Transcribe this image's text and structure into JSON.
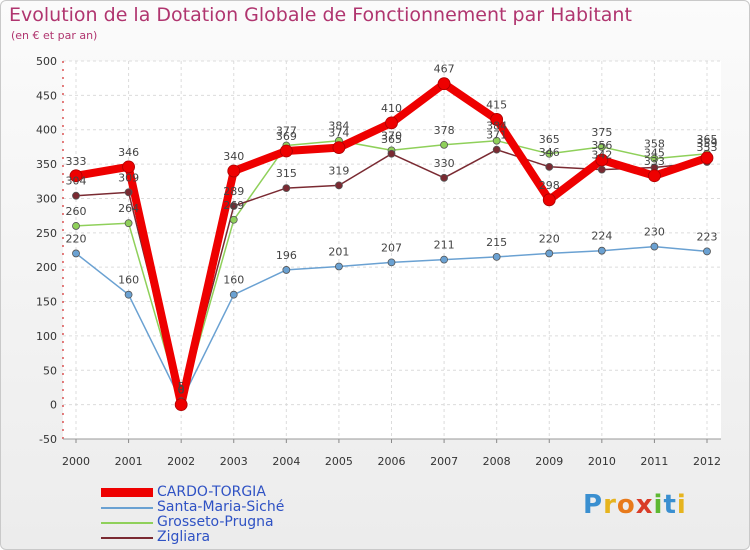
{
  "header": {
    "title": "Evolution de la Dotation Globale de Fonctionnement par Habitant",
    "subtitle": "(en € et par an)"
  },
  "logo": {
    "letters": [
      "P",
      "r",
      "o",
      "x",
      "i",
      "t",
      "i"
    ],
    "colors": [
      "#3a8fd0",
      "#e6b41e",
      "#e87a1b",
      "#d93c28",
      "#5eb832",
      "#3a8fd0",
      "#e6b41e"
    ]
  },
  "chart_data": {
    "type": "line",
    "title": "Evolution de la Dotation Globale de Fonctionnement par Habitant",
    "subtitle": "(en € et par an)",
    "xlabel": "",
    "ylabel": "",
    "x": [
      "2000",
      "2001",
      "2002",
      "2003",
      "2004",
      "2005",
      "2006",
      "2007",
      "2008",
      "2009",
      "2010",
      "2011",
      "2012"
    ],
    "ylim": [
      -50,
      500
    ],
    "yticks": [
      -50,
      0,
      50,
      100,
      150,
      200,
      250,
      300,
      350,
      400,
      450,
      500
    ],
    "grid": true,
    "legend_position": "bottom-left",
    "series": [
      {
        "name": "CARDO-TORGIA",
        "color": "#ee0000",
        "values": [
          333,
          346,
          0,
          340,
          369,
          374,
          410,
          467,
          415,
          298,
          356,
          333,
          359
        ],
        "labels": [
          "333",
          "346",
          "0",
          "340",
          "369",
          "374",
          "410",
          "467",
          "415",
          "298",
          "356",
          "333",
          "359"
        ]
      },
      {
        "name": "Santa-Maria-Siché",
        "color": "#6aa1d2",
        "values": [
          220,
          160,
          5,
          160,
          196,
          201,
          207,
          211,
          215,
          220,
          224,
          230,
          223
        ],
        "labels": [
          "220",
          "160",
          "5",
          "160",
          "196",
          "201",
          "207",
          "211",
          "215",
          "220",
          "224",
          "230",
          "223"
        ]
      },
      {
        "name": "Grosseto-Prugna",
        "color": "#8fd05a",
        "values": [
          260,
          264,
          0,
          269,
          377,
          384,
          370,
          378,
          384,
          365,
          375,
          358,
          365
        ],
        "labels": [
          "260",
          "264",
          "0",
          "269",
          "377",
          "384",
          "370",
          "378",
          "384",
          "365",
          "375",
          "358",
          "365"
        ]
      },
      {
        "name": "Zigliara",
        "color": "#7a2a32",
        "values": [
          304,
          309,
          0,
          289,
          315,
          319,
          365,
          330,
          371,
          346,
          342,
          345,
          353
        ],
        "labels": [
          "304",
          "309",
          "0",
          "289",
          "315",
          "319",
          "365",
          "330",
          "371",
          "346",
          "342",
          "345",
          "353"
        ]
      }
    ]
  }
}
